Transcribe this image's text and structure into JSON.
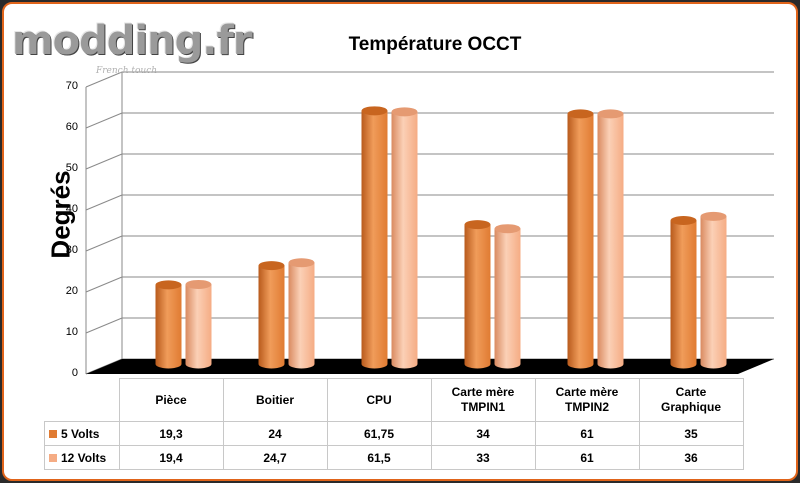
{
  "logo": {
    "text": "modding.fr",
    "tagline": "French touch"
  },
  "colors": {
    "series1": "#e07b32",
    "series2": "#f5ac84",
    "frame": "#e0641a",
    "floor": "#000000"
  },
  "chart_data": {
    "type": "bar",
    "title": "Température OCCT",
    "ylabel": "Degrés",
    "xlabel": "",
    "ylim": [
      0,
      70
    ],
    "yticks": [
      "0",
      "10",
      "20",
      "30",
      "40",
      "50",
      "60",
      "70"
    ],
    "categories": [
      [
        "Pièce"
      ],
      [
        "Boitier"
      ],
      [
        "CPU"
      ],
      [
        "Carte mère",
        "TMPIN1"
      ],
      [
        "Carte mère",
        "TMPIN2"
      ],
      [
        "Carte",
        "Graphique"
      ]
    ],
    "series": [
      {
        "name": "5 Volts",
        "values": [
          19.3,
          24,
          61.75,
          34,
          61,
          35
        ],
        "labels": [
          "19,3",
          "24",
          "61,75",
          "34",
          "61",
          "35"
        ]
      },
      {
        "name": "12 Volts",
        "values": [
          19.4,
          24.7,
          61.5,
          33,
          61,
          36
        ],
        "labels": [
          "19,4",
          "24,7",
          "61,5",
          "33",
          "61",
          "36"
        ]
      }
    ],
    "grid": true,
    "legend": "data table"
  }
}
